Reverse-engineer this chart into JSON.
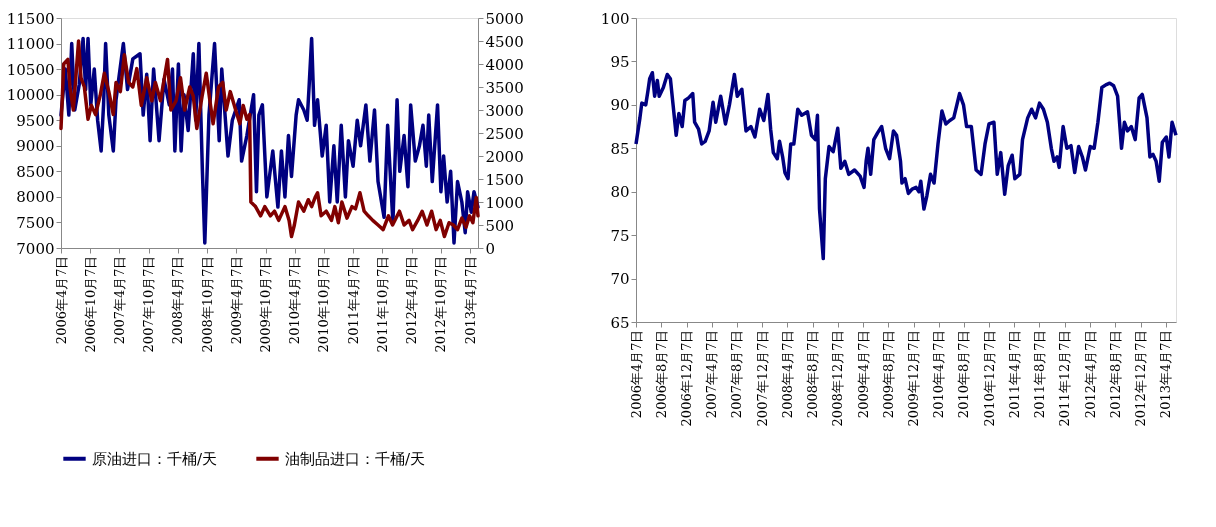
{
  "chart_data": [
    {
      "type": "line",
      "xlim": [
        "2006-04-07",
        "2013-05-27"
      ],
      "xticks": [
        {
          "value": "2006-04-07",
          "label": "2006年4月7日"
        },
        {
          "value": "2006-10-07",
          "label": "2006年10月7日"
        },
        {
          "value": "2007-04-07",
          "label": "2007年4月7日"
        },
        {
          "value": "2007-10-07",
          "label": "2007年10月7日"
        },
        {
          "value": "2008-04-07",
          "label": "2008年4月7日"
        },
        {
          "value": "2008-10-07",
          "label": "2008年10月7日"
        },
        {
          "value": "2009-04-07",
          "label": "2009年4月7日"
        },
        {
          "value": "2009-10-07",
          "label": "2009年10月7日"
        },
        {
          "value": "2010-04-07",
          "label": "2010年4月7日"
        },
        {
          "value": "2010-10-07",
          "label": "2010年10月7日"
        },
        {
          "value": "2011-04-07",
          "label": "2011年4月7日"
        },
        {
          "value": "2011-10-07",
          "label": "2011年10月7日"
        },
        {
          "value": "2012-04-07",
          "label": "2012年4月7日"
        },
        {
          "value": "2012-10-07",
          "label": "2012年10月7日"
        },
        {
          "value": "2013-04-07",
          "label": "2013年4月7日"
        }
      ],
      "ylim": [
        7000,
        11500
      ],
      "yticks": [
        7000,
        7500,
        8000,
        8500,
        9000,
        9500,
        10000,
        10500,
        11000,
        11500
      ],
      "y2lim": [
        0,
        5000
      ],
      "y2ticks": [
        0,
        500,
        1000,
        1500,
        2000,
        2500,
        3000,
        3500,
        4000,
        4500,
        5000
      ],
      "legend": "bottom",
      "grid": false,
      "series": [
        {
          "name": "原油进口：千桶/天",
          "color": "#000080",
          "x": [
            "2006-04-07",
            "2006-05-04",
            "2006-05-26",
            "2006-06-13",
            "2006-07-02",
            "2006-07-30",
            "2006-08-23",
            "2006-09-08",
            "2006-09-23",
            "2006-10-10",
            "2006-11-01",
            "2006-11-22",
            "2006-12-14",
            "2006-12-29",
            "2007-01-11",
            "2007-01-31",
            "2007-02-28",
            "2007-03-17",
            "2007-05-02",
            "2007-05-28",
            "2007-06-30",
            "2007-08-14",
            "2007-09-03",
            "2007-09-25",
            "2007-10-16",
            "2007-11-07",
            "2007-12-11",
            "2008-01-11",
            "2008-02-13",
            "2008-03-04",
            "2008-03-19",
            "2008-04-10",
            "2008-04-27",
            "2008-05-15",
            "2008-06-10",
            "2008-07-12",
            "2008-07-27",
            "2008-08-16",
            "2008-09-07",
            "2008-09-22",
            "2008-10-18",
            "2008-11-22",
            "2008-12-21",
            "2009-01-06",
            "2009-02-14",
            "2009-03-13",
            "2009-04-25",
            "2009-05-10",
            "2009-06-12",
            "2009-07-24",
            "2009-08-11",
            "2009-08-26",
            "2009-09-17",
            "2009-10-15",
            "2009-11-21",
            "2009-12-23",
            "2010-01-14",
            "2010-02-05",
            "2010-02-27",
            "2010-03-18",
            "2010-04-16",
            "2010-05-01",
            "2010-06-03",
            "2010-06-24",
            "2010-07-05",
            "2010-07-22",
            "2010-08-09",
            "2010-08-28",
            "2010-09-26",
            "2010-10-21",
            "2010-11-12",
            "2010-12-08",
            "2010-12-29",
            "2011-01-23",
            "2011-02-18",
            "2011-03-09",
            "2011-04-07",
            "2011-05-03",
            "2011-05-24",
            "2011-06-26",
            "2011-07-21",
            "2011-08-19",
            "2011-09-10",
            "2011-10-18",
            "2011-11-09",
            "2011-12-12",
            "2012-01-07",
            "2012-01-24",
            "2012-02-20",
            "2012-03-15",
            "2012-04-01",
            "2012-04-30",
            "2012-05-26",
            "2012-06-17",
            "2012-07-08",
            "2012-07-23",
            "2012-08-14",
            "2012-09-16",
            "2012-10-07",
            "2012-10-24",
            "2012-11-15",
            "2012-12-07",
            "2012-12-28",
            "2013-01-19",
            "2013-02-15",
            "2013-03-08",
            "2013-03-23",
            "2013-04-15",
            "2013-05-02",
            "2013-05-27"
          ],
          "values": [
            9600,
            10500,
            9600,
            11000,
            9700,
            10200,
            11100,
            10100,
            11100,
            9800,
            10500,
            9500,
            8900,
            9800,
            11000,
            9600,
            8900,
            9900,
            11000,
            10100,
            10700,
            10800,
            9600,
            10400,
            9100,
            10500,
            9100,
            10300,
            9800,
            10500,
            8900,
            10600,
            8900,
            10000,
            9300,
            10800,
            9500,
            11000,
            8500,
            7100,
            9600,
            11000,
            9100,
            10500,
            8800,
            9500,
            9900,
            8700,
            9200,
            10000,
            8100,
            9600,
            9800,
            8000,
            8900,
            7800,
            8900,
            8000,
            9200,
            8400,
            9600,
            9900,
            9700,
            9500,
            10100,
            11100,
            9400,
            9900,
            8800,
            9400,
            7900,
            9000,
            7900,
            9400,
            8000,
            9100,
            8600,
            9500,
            9000,
            9800,
            8700,
            9700,
            8300,
            7600,
            9400,
            7500,
            9900,
            8500,
            9200,
            8200,
            9800,
            8700,
            9000,
            9400,
            8600,
            9600,
            8300,
            9800,
            8100,
            8800,
            7900,
            8500,
            7100,
            8300,
            7900,
            7300,
            8100,
            7700,
            8100,
            7800
          ]
        },
        {
          "name": "油制品进口：千桶/天",
          "color": "#800000",
          "axis": "y2",
          "x": [
            "2006-04-07",
            "2006-04-24",
            "2006-05-20",
            "2006-06-02",
            "2006-06-23",
            "2006-07-26",
            "2006-08-10",
            "2006-08-31",
            "2006-09-23",
            "2006-10-14",
            "2006-11-09",
            "2006-12-07",
            "2007-01-03",
            "2007-01-31",
            "2007-02-28",
            "2007-03-17",
            "2007-04-13",
            "2007-05-08",
            "2007-06-04",
            "2007-06-30",
            "2007-07-25",
            "2007-08-22",
            "2007-09-25",
            "2007-10-27",
            "2007-11-18",
            "2007-12-20",
            "2008-02-02",
            "2008-02-23",
            "2008-03-26",
            "2008-04-23",
            "2008-05-19",
            "2008-06-20",
            "2008-07-12",
            "2008-08-03",
            "2008-09-05",
            "2008-10-01",
            "2008-10-28",
            "2008-11-13",
            "2008-12-17",
            "2009-01-12",
            "2009-02-03",
            "2009-02-28",
            "2009-04-03",
            "2009-04-29",
            "2009-05-20",
            "2009-06-12",
            "2009-06-29",
            "2009-07-07",
            "2009-08-05",
            "2009-09-06",
            "2009-10-02",
            "2009-11-06",
            "2009-12-02",
            "2009-12-28",
            "2010-02-05",
            "2010-03-03",
            "2010-03-18",
            "2010-04-05",
            "2010-05-01",
            "2010-06-03",
            "2010-07-01",
            "2010-07-22",
            "2010-08-13",
            "2010-08-28",
            "2010-09-19",
            "2010-10-21",
            "2010-11-23",
            "2010-12-14",
            "2011-01-05",
            "2011-01-27",
            "2011-02-28",
            "2011-03-31",
            "2011-04-22",
            "2011-05-20",
            "2011-06-15",
            "2011-07-11",
            "2011-08-08",
            "2011-09-10",
            "2011-10-12",
            "2011-11-14",
            "2011-12-10",
            "2012-01-22",
            "2012-02-20",
            "2012-03-22",
            "2012-04-13",
            "2012-05-15",
            "2012-06-12",
            "2012-07-12",
            "2012-08-10",
            "2012-09-07",
            "2012-10-03",
            "2012-10-29",
            "2012-11-27",
            "2012-12-24",
            "2013-01-19",
            "2013-02-15",
            "2013-03-13",
            "2013-04-04",
            "2013-04-25",
            "2013-05-16",
            "2013-05-27"
          ],
          "values": [
            2600,
            4000,
            4100,
            3500,
            3000,
            4500,
            3700,
            3500,
            2800,
            3100,
            2900,
            3300,
            3800,
            3400,
            2900,
            3600,
            3400,
            4200,
            3600,
            3500,
            3900,
            3100,
            3700,
            3200,
            3600,
            3200,
            4100,
            3000,
            3200,
            3700,
            3000,
            3500,
            3300,
            2600,
            3300,
            3800,
            3100,
            2700,
            3500,
            3600,
            3000,
            3400,
            3000,
            2700,
            3100,
            2800,
            2900,
            1000,
            900,
            700,
            900,
            700,
            800,
            600,
            900,
            600,
            250,
            500,
            1000,
            800,
            1050,
            900,
            1100,
            1200,
            700,
            800,
            600,
            900,
            550,
            1000,
            650,
            900,
            850,
            1200,
            800,
            700,
            600,
            500,
            400,
            700,
            500,
            800,
            500,
            600,
            400,
            600,
            800,
            500,
            800,
            400,
            600,
            250,
            550,
            500,
            400,
            650,
            450,
            700,
            550,
            1100,
            700
          ]
        }
      ]
    },
    {
      "type": "line",
      "xlim": [
        "2006-04-07",
        "2013-05-27"
      ],
      "xticks": [
        {
          "value": "2006-04-07",
          "label": "2006年4月7日"
        },
        {
          "value": "2006-08-07",
          "label": "2006年8月7日"
        },
        {
          "value": "2006-12-07",
          "label": "2006年12月7日"
        },
        {
          "value": "2007-04-07",
          "label": "2007年4月7日"
        },
        {
          "value": "2007-08-07",
          "label": "2007年8月7日"
        },
        {
          "value": "2007-12-07",
          "label": "2007年12月7日"
        },
        {
          "value": "2008-04-07",
          "label": "2008年4月7日"
        },
        {
          "value": "2008-08-07",
          "label": "2008年8月7日"
        },
        {
          "value": "2008-12-07",
          "label": "2008年12月7日"
        },
        {
          "value": "2009-04-07",
          "label": "2009年4月7日"
        },
        {
          "value": "2009-08-07",
          "label": "2009年8月7日"
        },
        {
          "value": "2009-12-07",
          "label": "2009年12月7日"
        },
        {
          "value": "2010-04-07",
          "label": "2010年4月7日"
        },
        {
          "value": "2010-08-07",
          "label": "2010年8月7日"
        },
        {
          "value": "2010-12-07",
          "label": "2010年12月7日"
        },
        {
          "value": "2011-04-07",
          "label": "2011年4月7日"
        },
        {
          "value": "2011-08-07",
          "label": "2011年8月7日"
        },
        {
          "value": "2011-12-07",
          "label": "2011年12月7日"
        },
        {
          "value": "2012-04-07",
          "label": "2012年4月7日"
        },
        {
          "value": "2012-08-07",
          "label": "2012年8月7日"
        },
        {
          "value": "2012-12-07",
          "label": "2012年12月7日"
        },
        {
          "value": "2013-04-07",
          "label": "2013年4月7日"
        }
      ],
      "ylim": [
        65,
        100
      ],
      "yticks": [
        65,
        70,
        75,
        80,
        85,
        90,
        95,
        100
      ],
      "grid": false,
      "series": [
        {
          "color": "#000080",
          "x": [
            "2006-04-07",
            "2006-04-26",
            "2006-05-05",
            "2006-05-24",
            "2006-06-03",
            "2006-06-12",
            "2006-06-25",
            "2006-07-06",
            "2006-07-19",
            "2006-07-28",
            "2006-08-17",
            "2006-09-05",
            "2006-09-20",
            "2006-10-03",
            "2006-10-18",
            "2006-10-31",
            "2006-11-16",
            "2006-11-29",
            "2006-12-17",
            "2007-01-06",
            "2007-01-15",
            "2007-02-03",
            "2007-02-18",
            "2007-03-07",
            "2007-03-26",
            "2007-04-14",
            "2007-04-27",
            "2007-05-21",
            "2007-06-13",
            "2007-07-02",
            "2007-07-26",
            "2007-08-09",
            "2007-08-31",
            "2007-09-20",
            "2007-10-14",
            "2007-11-02",
            "2007-11-25",
            "2007-12-15",
            "2008-01-04",
            "2008-01-17",
            "2008-01-30",
            "2008-02-18",
            "2008-02-29",
            "2008-03-15",
            "2008-03-26",
            "2008-04-10",
            "2008-04-23",
            "2008-05-08",
            "2008-05-27",
            "2008-06-15",
            "2008-07-13",
            "2008-08-01",
            "2008-08-20",
            "2008-08-30",
            "2008-09-09",
            "2008-09-27",
            "2008-10-07",
            "2008-10-25",
            "2008-11-14",
            "2008-12-06",
            "2008-12-21",
            "2009-01-09",
            "2009-01-28",
            "2009-02-25",
            "2009-03-24",
            "2009-04-12",
            "2009-04-22",
            "2009-05-01",
            "2009-05-14",
            "2009-05-29",
            "2009-06-17",
            "2009-07-06",
            "2009-07-25",
            "2009-08-13",
            "2009-09-01",
            "2009-09-16",
            "2009-10-05",
            "2009-10-12",
            "2009-10-27",
            "2009-11-12",
            "2009-11-30",
            "2009-12-19",
            "2010-01-02",
            "2010-01-11",
            "2010-01-26",
            "2010-02-09",
            "2010-02-27",
            "2010-03-16",
            "2010-04-04",
            "2010-04-23",
            "2010-05-12",
            "2010-05-31",
            "2010-06-19",
            "2010-07-17",
            "2010-08-05",
            "2010-08-20",
            "2010-09-12",
            "2010-10-05",
            "2010-10-29",
            "2010-11-17",
            "2010-12-06",
            "2010-12-30",
            "2011-01-15",
            "2011-02-01",
            "2011-02-20",
            "2011-03-09",
            "2011-03-28",
            "2011-04-10",
            "2011-05-04",
            "2011-05-17",
            "2011-06-11",
            "2011-06-30",
            "2011-07-19",
            "2011-08-07",
            "2011-08-26",
            "2011-09-14",
            "2011-10-03",
            "2011-10-16",
            "2011-10-31",
            "2011-11-10",
            "2011-11-29",
            "2011-12-17",
            "2012-01-06",
            "2012-01-24",
            "2012-02-12",
            "2012-03-01",
            "2012-03-16",
            "2012-04-08",
            "2012-04-27",
            "2012-05-15",
            "2012-06-03",
            "2012-06-22",
            "2012-07-11",
            "2012-07-30",
            "2012-08-18",
            "2012-09-06",
            "2012-09-20",
            "2012-10-05",
            "2012-10-23",
            "2012-11-11",
            "2012-11-30",
            "2012-12-15",
            "2013-01-07",
            "2013-01-21",
            "2013-02-05",
            "2013-02-20",
            "2013-03-07",
            "2013-03-22",
            "2013-04-10",
            "2013-04-23",
            "2013-05-08",
            "2013-05-27"
          ],
          "values": [
            85.5,
            88.5,
            90.2,
            90,
            91.5,
            93,
            93.7,
            91,
            92.8,
            91,
            92,
            93.5,
            93,
            90,
            86.5,
            89,
            87.5,
            90.5,
            90.8,
            91.3,
            88,
            87.2,
            85.5,
            85.8,
            87,
            90.3,
            88,
            91,
            87.8,
            90,
            93.5,
            91,
            91.8,
            87,
            87.5,
            86.3,
            89.5,
            88.2,
            91.2,
            87.2,
            84.5,
            83.8,
            85.8,
            84,
            82.2,
            81.5,
            85.5,
            85.5,
            89.5,
            88.8,
            89.2,
            86.5,
            86,
            88.8,
            78,
            72.3,
            81.5,
            85.2,
            84.6,
            87.3,
            82.7,
            83.5,
            82,
            82.5,
            81.8,
            80.5,
            83.5,
            85,
            82,
            86,
            86.8,
            87.5,
            85,
            83.8,
            87,
            86.5,
            83.5,
            81,
            81.5,
            79.8,
            80.3,
            80.5,
            80,
            81.2,
            78,
            79.5,
            82,
            81,
            85.5,
            89.3,
            87.8,
            88.2,
            88.5,
            91.3,
            90,
            87.5,
            87.5,
            82.5,
            82,
            85.5,
            87.8,
            88,
            82,
            84.5,
            79.7,
            83,
            84.2,
            81.5,
            82,
            86,
            88.5,
            89.5,
            88.5,
            90.2,
            89.5,
            88,
            85,
            83.5,
            84,
            82.8,
            87.5,
            85,
            85.3,
            82.2,
            85.2,
            84,
            82.5,
            85.2,
            85,
            88,
            92,
            92.3,
            92.5,
            92.2,
            91,
            85,
            88,
            87,
            87.5,
            86,
            90.8,
            91.2,
            88.5,
            84,
            84.3,
            83.5,
            81.2,
            85.7,
            86.3,
            84,
            88,
            86.5
          ]
        }
      ]
    }
  ]
}
